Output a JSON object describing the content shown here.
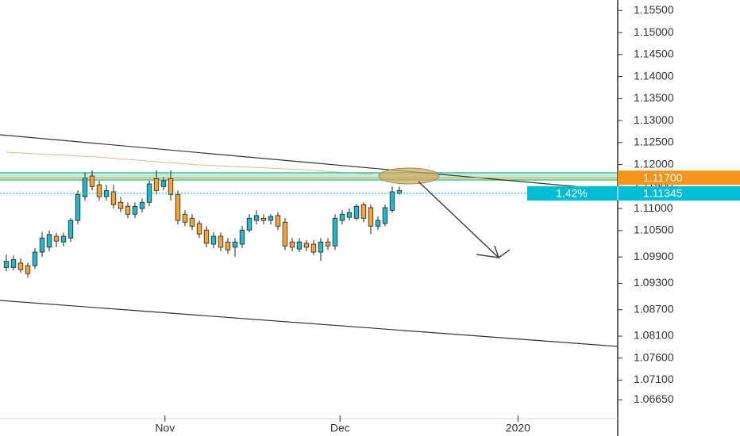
{
  "chart_data": {
    "type": "candlestick",
    "open": [
      1.0966,
      1.0966,
      1.0976,
      1.097,
      1.097,
      1.1001,
      1.1012,
      1.1037,
      1.1024,
      1.1033,
      1.1073,
      1.1127,
      1.1174,
      1.1154,
      1.1127,
      1.1138,
      1.1114,
      1.1105,
      1.1087,
      1.11,
      1.1114,
      1.1168,
      1.115,
      1.1168,
      1.1132,
      1.1087,
      1.1078,
      1.1066,
      1.1051,
      1.1019,
      1.1037,
      1.1024,
      1.1012,
      1.1019,
      1.1051,
      1.1073,
      1.1078,
      1.1073,
      1.1084,
      1.1069,
      1.1024,
      1.1008,
      1.1021,
      1.1019,
      1.1001,
      1.1024,
      1.1015,
      1.1073,
      1.108,
      1.1078,
      1.1109,
      1.1102,
      1.106,
      1.1066,
      1.1096,
      1.1134
    ],
    "high": [
      1.0995,
      1.0993,
      1.0987,
      1.0977,
      1.101,
      1.1047,
      1.105,
      1.1045,
      1.1045,
      1.1078,
      1.1141,
      1.1182,
      1.1187,
      1.1163,
      1.1154,
      1.1154,
      1.1127,
      1.1114,
      1.1114,
      1.1123,
      1.1163,
      1.1187,
      1.1172,
      1.1187,
      1.1141,
      1.1096,
      1.1087,
      1.1073,
      1.106,
      1.1046,
      1.1046,
      1.1033,
      1.1033,
      1.106,
      1.1087,
      1.1096,
      1.1087,
      1.1087,
      1.1092,
      1.1078,
      1.1033,
      1.1033,
      1.1028,
      1.1028,
      1.1033,
      1.1033,
      1.1087,
      1.1096,
      1.11,
      1.111,
      1.1114,
      1.1109,
      1.1082,
      1.1109,
      1.115,
      1.115
    ],
    "low": [
      1.0957,
      1.0959,
      1.0954,
      1.0943,
      1.0963,
      1.099,
      1.1003,
      1.1012,
      1.1014,
      1.1024,
      1.1064,
      1.1118,
      1.1141,
      1.1118,
      1.1118,
      1.11,
      1.1091,
      1.1078,
      1.1078,
      1.1091,
      1.1105,
      1.1132,
      1.1141,
      1.1118,
      1.1064,
      1.106,
      1.1051,
      1.1033,
      1.1012,
      1.101,
      1.1003,
      1.0997,
      1.099,
      1.101,
      1.1046,
      1.1064,
      1.1064,
      1.1064,
      1.1051,
      1.1006,
      1.1003,
      1.1001,
      1.1003,
      1.0994,
      1.0981,
      1.1006,
      1.1006,
      1.1064,
      1.1073,
      1.1073,
      1.1069,
      1.1042,
      1.1051,
      1.106,
      1.1091,
      1.1132
    ],
    "close": [
      1.098,
      1.0984,
      1.0961,
      1.0952,
      1.1001,
      1.1033,
      1.1041,
      1.1026,
      1.1037,
      1.1073,
      1.1132,
      1.1169,
      1.115,
      1.1127,
      1.1141,
      1.1109,
      1.11,
      1.1087,
      1.1105,
      1.1114,
      1.1156,
      1.1141,
      1.1163,
      1.1132,
      1.1073,
      1.1069,
      1.106,
      1.1042,
      1.1021,
      1.1037,
      1.1012,
      1.1006,
      1.1024,
      1.1051,
      1.1078,
      1.1084,
      1.1073,
      1.1082,
      1.106,
      1.1015,
      1.1012,
      1.1024,
      1.1012,
      1.1001,
      1.1024,
      1.1015,
      1.1078,
      1.1087,
      1.1091,
      1.1105,
      1.1078,
      1.106,
      1.1073,
      1.1102,
      1.1138,
      1.1141
    ],
    "up_color": "#26b8c8",
    "down_color": "#f3a53a",
    "ylim": [
      1.0619,
      1.1574
    ],
    "yticks": [
      {
        "value": 1.155,
        "label": "1.15500"
      },
      {
        "value": 1.15,
        "label": "1.15000"
      },
      {
        "value": 1.145,
        "label": "1.14500"
      },
      {
        "value": 1.14,
        "label": "1.14000"
      },
      {
        "value": 1.135,
        "label": "1.13500"
      },
      {
        "value": 1.13,
        "label": "1.13000"
      },
      {
        "value": 1.125,
        "label": "1.12500"
      },
      {
        "value": 1.12,
        "label": "1.12000"
      },
      {
        "value": 1.115,
        "label": "1.11500"
      },
      {
        "value": 1.11,
        "label": "1.11000"
      },
      {
        "value": 1.105,
        "label": "1.10500"
      },
      {
        "value": 1.099,
        "label": "1.09900"
      },
      {
        "value": 1.093,
        "label": "1.09300"
      },
      {
        "value": 1.087,
        "label": "1.08700"
      },
      {
        "value": 1.081,
        "label": "1.08100"
      },
      {
        "value": 1.076,
        "label": "1.07600"
      },
      {
        "value": 1.071,
        "label": "1.07100"
      },
      {
        "value": 1.0665,
        "label": "1.06650"
      }
    ],
    "xlim": [
      -0.89,
      85.56
    ],
    "xticks": [
      {
        "value": 22.2,
        "label": "Nov"
      },
      {
        "value": 46.7,
        "label": "Dec"
      },
      {
        "value": 71.6,
        "label": "2020"
      }
    ],
    "price_lines": [
      {
        "value": 1.117,
        "label": "1.11700",
        "color": "#f7931a"
      },
      {
        "value": 1.11345,
        "label": "1.11345",
        "change_label": "1.42%",
        "color": "#00bcd4"
      }
    ]
  }
}
